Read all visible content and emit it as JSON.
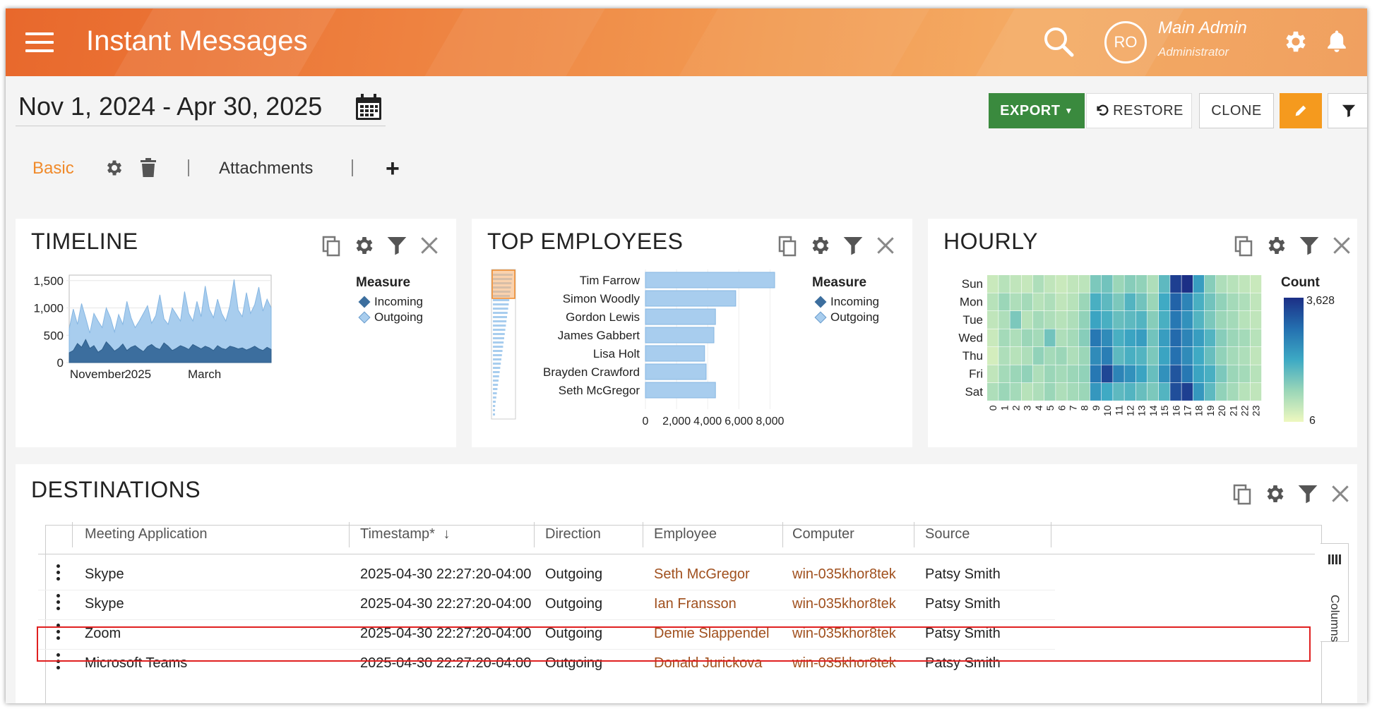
{
  "header": {
    "title": "Instant Messages",
    "avatar_initials": "RO",
    "user_name": "Main Admin",
    "user_role": "Administrator"
  },
  "date_range": "Nov 1, 2024 - Apr 30, 2025",
  "toolbar": {
    "export_label": "EXPORT",
    "restore_label": "RESTORE",
    "clone_label": "CLONE"
  },
  "tabs": {
    "basic": "Basic",
    "attachments": "Attachments",
    "add": "+"
  },
  "colors": {
    "accent": "#f08a2a",
    "export": "#3a8a3e",
    "edit": "#f59a1e",
    "incoming": "#3c6e9e",
    "outgoing": "#a8cdee",
    "link": "#a0501e",
    "highlight": "#e02020"
  },
  "timeline": {
    "title": "TIMELINE",
    "legend_title": "Measure",
    "legend": [
      "Incoming",
      "Outgoing"
    ],
    "y_ticks": [
      "1,500",
      "1,000",
      "500",
      "0"
    ],
    "x_ticks": [
      "November",
      "2025",
      "March"
    ]
  },
  "top_employees": {
    "title": "TOP EMPLOYEES",
    "legend_title": "Measure",
    "legend": [
      "Incoming",
      "Outgoing"
    ],
    "x_ticks": [
      "0",
      "2,000",
      "4,000",
      "6,000",
      "8,000"
    ]
  },
  "hourly": {
    "title": "HOURLY",
    "legend_title": "Count",
    "legend_max": "3,628",
    "legend_min": "6"
  },
  "destinations": {
    "title": "DESTINATIONS",
    "columns_label": "Columns",
    "headers": [
      "Meeting Application",
      "Timestamp*",
      "Direction",
      "Employee",
      "Computer",
      "Source"
    ],
    "rows": [
      {
        "app": "Skype",
        "timestamp": "2025-04-30 22:27:20-04:00",
        "direction": "Outgoing",
        "employee": "Seth McGregor",
        "computer": "win-035khor8tek",
        "source": "Patsy Smith"
      },
      {
        "app": "Skype",
        "timestamp": "2025-04-30 22:27:20-04:00",
        "direction": "Outgoing",
        "employee": "Ian Fransson",
        "computer": "win-035khor8tek",
        "source": "Patsy Smith"
      },
      {
        "app": "Zoom",
        "timestamp": "2025-04-30 22:27:20-04:00",
        "direction": "Outgoing",
        "employee": "Demie Slappendel",
        "computer": "win-035khor8tek",
        "source": "Patsy Smith"
      },
      {
        "app": "Microsoft Teams",
        "timestamp": "2025-04-30 22:27:20-04:00",
        "direction": "Outgoing",
        "employee": "Donald Jurickova",
        "computer": "win-035khor8tek",
        "source": "Patsy Smith"
      }
    ]
  },
  "chart_data": [
    {
      "type": "area",
      "title": "TIMELINE",
      "ylim": [
        0,
        1600
      ],
      "y_ticks": [
        0,
        500,
        1000,
        1500
      ],
      "x_ticks": [
        "November",
        "2025",
        "March"
      ],
      "series": [
        {
          "name": "Incoming",
          "values": [
            180,
            220,
            350,
            280,
            420,
            260,
            310,
            190,
            240,
            380,
            300,
            210,
            260,
            340,
            220,
            280,
            310,
            250,
            200,
            290,
            330,
            270,
            240,
            360,
            300,
            220,
            260,
            310,
            280,
            240,
            330,
            290,
            250,
            300,
            270,
            220,
            310,
            260,
            240,
            300,
            280,
            250,
            270,
            230,
            260,
            300,
            250,
            220,
            280,
            240
          ]
        },
        {
          "name": "Outgoing",
          "values": [
            620,
            980,
            700,
            1080,
            820,
            540,
            900,
            760,
            640,
            1000,
            820,
            560,
            880,
            700,
            1120,
            820,
            640,
            760,
            900,
            1040,
            720,
            860,
            1240,
            800,
            700,
            1000,
            880,
            760,
            1300,
            900,
            760,
            1120,
            840,
            1400,
            980,
            820,
            1160,
            900,
            760,
            1040,
            1520,
            960,
            840,
            1280,
            900,
            1060,
            1380,
            940,
            1160,
            1000
          ]
        }
      ],
      "legend_title": "Measure"
    },
    {
      "type": "bar",
      "title": "TOP EMPLOYEES",
      "categories": [
        "Tim Farrow",
        "Simon Woodly",
        "Gordon Lewis",
        "James Gabbert",
        "Lisa Holt",
        "Brayden Crawford",
        "Seth McGregor"
      ],
      "series": [
        {
          "name": "Outgoing",
          "values": [
            8300,
            5800,
            4500,
            4400,
            3800,
            3900,
            4500
          ]
        }
      ],
      "xlim": [
        0,
        8800
      ],
      "x_ticks": [
        0,
        2000,
        4000,
        6000,
        8000
      ],
      "legend_title": "Measure"
    },
    {
      "type": "heatmap",
      "title": "HOURLY",
      "y_categories": [
        "Sun",
        "Mon",
        "Tue",
        "Wed",
        "Thu",
        "Fri",
        "Sat"
      ],
      "x_categories": [
        "0",
        "1",
        "2",
        "3",
        "4",
        "5",
        "6",
        "7",
        "8",
        "9",
        "10",
        "11",
        "12",
        "13",
        "14",
        "15",
        "16",
        "17",
        "18",
        "19",
        "20",
        "21",
        "22",
        "23"
      ],
      "values": [
        [
          400,
          600,
          500,
          450,
          700,
          500,
          400,
          500,
          550,
          1200,
          1300,
          900,
          1100,
          1000,
          700,
          1500,
          3400,
          3628,
          2000,
          1100,
          700,
          600,
          500,
          400
        ],
        [
          600,
          900,
          700,
          800,
          600,
          700,
          500,
          600,
          900,
          1700,
          1500,
          1200,
          1600,
          1300,
          900,
          1800,
          2900,
          2400,
          1700,
          1300,
          1000,
          800,
          700,
          500
        ],
        [
          500,
          700,
          1200,
          600,
          800,
          700,
          600,
          700,
          1000,
          1900,
          1700,
          1400,
          1500,
          1600,
          1100,
          1700,
          2600,
          2200,
          1600,
          1200,
          900,
          800,
          600,
          500
        ],
        [
          400,
          800,
          700,
          900,
          800,
          1300,
          700,
          800,
          1100,
          2600,
          2300,
          1700,
          1900,
          2000,
          1300,
          2000,
          2800,
          2400,
          2000,
          1600,
          1100,
          900,
          800,
          600
        ],
        [
          300,
          700,
          600,
          700,
          1000,
          800,
          900,
          700,
          900,
          2300,
          2500,
          1500,
          1700,
          1600,
          1200,
          1900,
          2700,
          2300,
          1800,
          1400,
          1000,
          800,
          700,
          500
        ],
        [
          500,
          800,
          900,
          1000,
          700,
          900,
          800,
          900,
          1000,
          2600,
          3300,
          2400,
          2200,
          1900,
          1400,
          2200,
          3100,
          2600,
          1900,
          1700,
          1200,
          900,
          800,
          600
        ],
        [
          700,
          900,
          800,
          600,
          700,
          900,
          700,
          800,
          900,
          2100,
          1800,
          1500,
          1600,
          1400,
          1200,
          1600,
          3200,
          3400,
          2100,
          1500,
          1000,
          800,
          600,
          500
        ]
      ],
      "zlim": [
        6,
        3628
      ],
      "legend_title": "Count"
    }
  ]
}
